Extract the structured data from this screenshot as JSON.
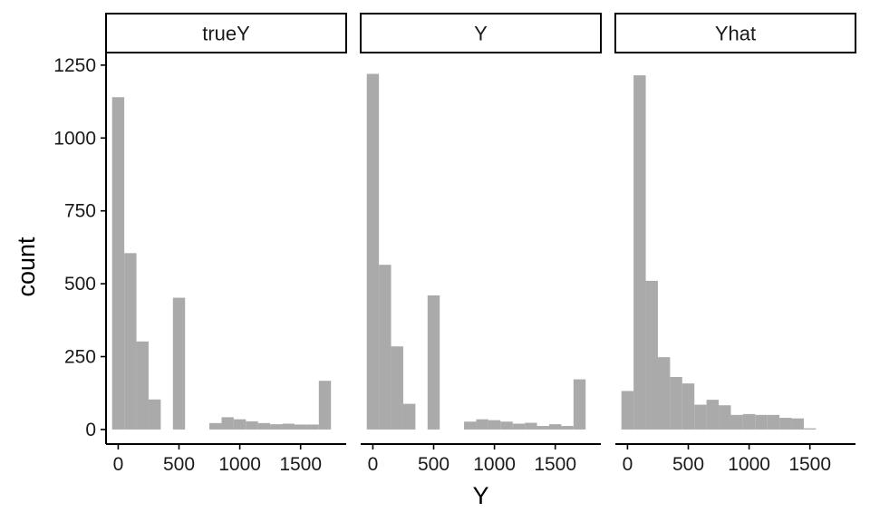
{
  "chart_data": {
    "type": "bar",
    "subtype": "faceted-histogram",
    "xlabel": "Y",
    "ylabel": "count",
    "xlim": [
      -100,
      1875
    ],
    "ylim": [
      -50,
      1290
    ],
    "x_ticks": [
      0,
      500,
      1000,
      1500
    ],
    "y_ticks": [
      0,
      250,
      500,
      750,
      1000,
      1250
    ],
    "bar_color": "#aaaaaa",
    "bin_width": 100,
    "grid": false,
    "legend": "none",
    "facets": [
      {
        "strip_label": "trueY",
        "x_start": -50,
        "counts": [
          1140,
          605,
          302,
          103,
          0,
          452,
          0,
          0,
          22,
          42,
          35,
          28,
          22,
          18,
          20,
          17,
          17,
          167
        ]
      },
      {
        "strip_label": "Y",
        "x_start": -50,
        "counts": [
          1220,
          565,
          285,
          88,
          0,
          460,
          0,
          0,
          27,
          35,
          32,
          27,
          20,
          23,
          12,
          18,
          12,
          172
        ]
      },
      {
        "strip_label": "Yhat",
        "x_start": -50,
        "counts": [
          132,
          1215,
          510,
          248,
          180,
          158,
          85,
          102,
          83,
          50,
          53,
          50,
          50,
          40,
          38,
          4
        ]
      }
    ]
  }
}
